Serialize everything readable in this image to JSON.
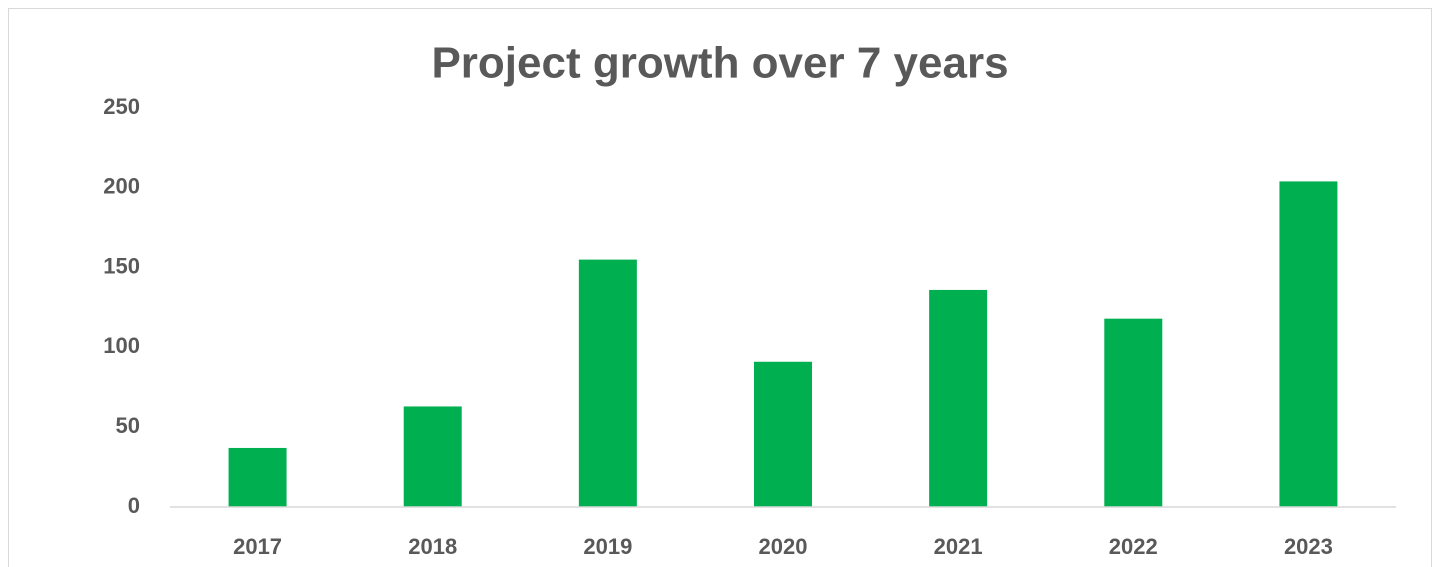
{
  "chart_data": {
    "type": "bar",
    "title": "Project growth over 7 years",
    "categories": [
      "2017",
      "2018",
      "2019",
      "2020",
      "2021",
      "2022",
      "2023"
    ],
    "values": [
      37,
      63,
      155,
      91,
      136,
      118,
      204
    ],
    "color": "#00b050",
    "ylim": [
      0,
      250
    ],
    "yticks": [
      0,
      50,
      100,
      150,
      200,
      250
    ],
    "grid": false
  }
}
